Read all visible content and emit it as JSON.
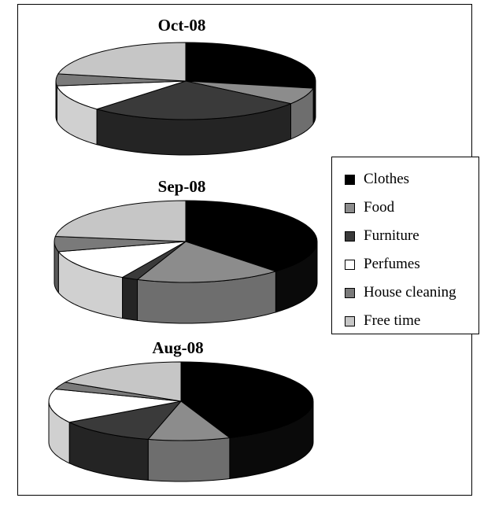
{
  "chart_data": [
    {
      "type": "pie",
      "title": "Oct-08",
      "categories": [
        "Clothes",
        "Food",
        "Furniture",
        "Perfumes",
        "House cleaning",
        "Free time"
      ],
      "values": [
        28,
        7,
        27,
        11,
        5,
        22
      ]
    },
    {
      "type": "pie",
      "title": "Sep-08",
      "categories": [
        "Clothes",
        "Food",
        "Furniture",
        "Perfumes",
        "House cleaning",
        "Free time"
      ],
      "values": [
        38,
        18,
        2,
        13,
        6,
        23
      ]
    },
    {
      "type": "pie",
      "title": "Aug-08",
      "categories": [
        "Clothes",
        "Food",
        "Furniture",
        "Perfumes",
        "House cleaning",
        "Free time"
      ],
      "values": [
        44,
        10,
        12,
        14,
        3,
        17
      ]
    }
  ],
  "legend": {
    "placement": "right",
    "items": [
      {
        "label": "Clothes",
        "color": "#000000"
      },
      {
        "label": "Food",
        "color": "#8c8c8c"
      },
      {
        "label": "Furniture",
        "color": "#3a3a3a"
      },
      {
        "label": "Perfumes",
        "color": "#ffffff"
      },
      {
        "label": "House cleaning",
        "color": "#7a7a7a"
      },
      {
        "label": "Free time",
        "color": "#c6c6c6"
      }
    ]
  }
}
